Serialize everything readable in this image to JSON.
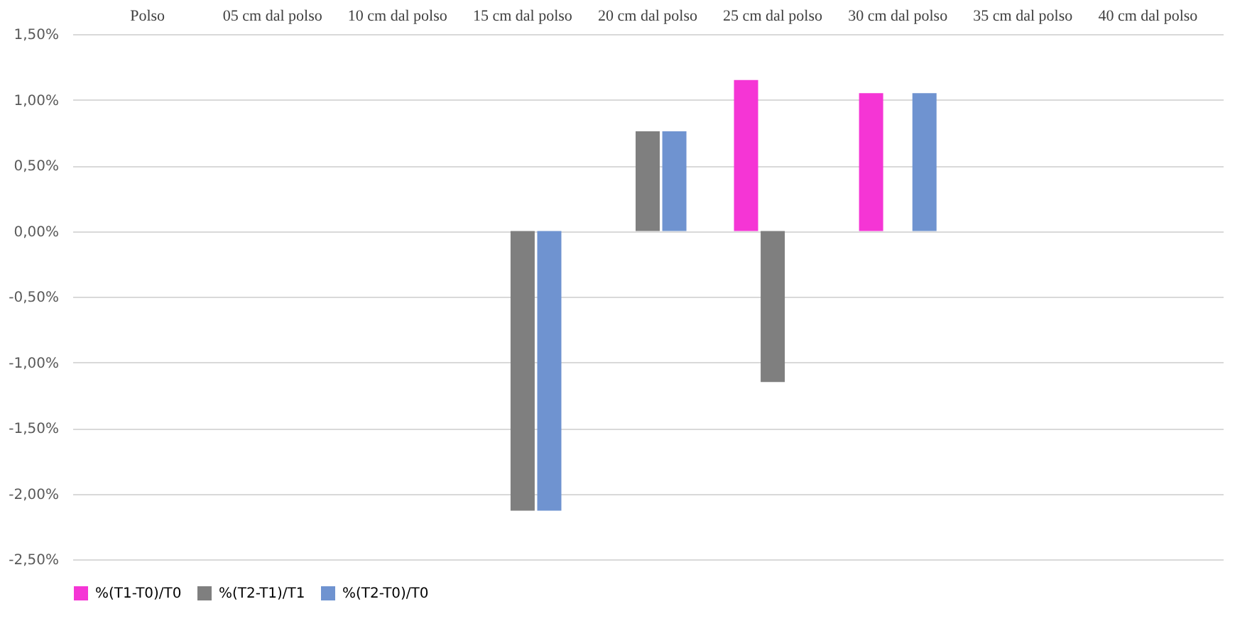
{
  "chart_data": {
    "type": "bar",
    "categories": [
      "Polso",
      "05 cm dal polso",
      "10 cm dal polso",
      "15 cm dal polso",
      "20 cm dal polso",
      "25 cm dal polso",
      "30 cm dal polso",
      "35 cm dal polso",
      "40 cm dal polso"
    ],
    "series": [
      {
        "name": "%(T1-T0)/T0",
        "color": "#f535d5",
        "values": [
          null,
          null,
          null,
          null,
          null,
          1.15,
          1.05,
          null,
          null
        ]
      },
      {
        "name": "%(T2-T1)/T1",
        "color": "#7f7f7f",
        "values": [
          null,
          null,
          null,
          -2.13,
          0.76,
          -1.15,
          null,
          null,
          null
        ]
      },
      {
        "name": "%(T2-T0)/T0",
        "color": "#6f93d0",
        "values": [
          null,
          null,
          null,
          -2.13,
          0.76,
          null,
          1.05,
          null,
          null
        ]
      }
    ],
    "ylim": [
      -2.5,
      1.5
    ],
    "yticks": [
      {
        "value": 1.5,
        "label": "1,50%"
      },
      {
        "value": 1.0,
        "label": "1,00%"
      },
      {
        "value": 0.5,
        "label": "0,50%"
      },
      {
        "value": 0,
        "label": "0,00%"
      },
      {
        "value": -0.5,
        "label": "-0,50%"
      },
      {
        "value": -1.0,
        "label": "-1,00%"
      },
      {
        "value": -1.5,
        "label": "-1,50%"
      },
      {
        "value": -2.0,
        "label": "-2,00%"
      },
      {
        "value": -2.5,
        "label": "-2,50%"
      }
    ],
    "grid": "y",
    "legend": "bottom"
  }
}
